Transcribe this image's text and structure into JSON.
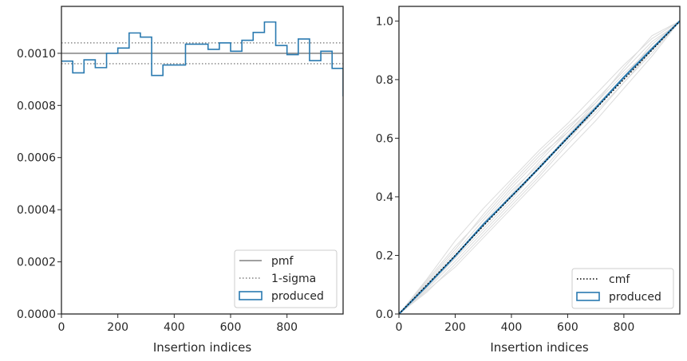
{
  "chart_data": [
    {
      "type": "step",
      "xlabel": "Insertion indices",
      "ylabel": "",
      "xlim": [
        0,
        999
      ],
      "ylim": [
        0,
        0.00118
      ],
      "xticks": [
        0,
        200,
        400,
        600,
        800
      ],
      "xtick_labels": [
        "0",
        "200",
        "400",
        "600",
        "800"
      ],
      "yticks": [
        0,
        0.0002,
        0.0004,
        0.0006,
        0.0008,
        0.001
      ],
      "ytick_labels": [
        "0.0000",
        "0.0002",
        "0.0004",
        "0.0006",
        "0.0008",
        "0.0010"
      ],
      "legend_position": "lower-right",
      "pmf": 0.001,
      "sigma_band": [
        0.00096,
        0.00104
      ],
      "bin_edges": [
        0,
        40,
        80,
        120,
        160,
        200,
        240,
        280,
        320,
        360,
        400,
        440,
        480,
        520,
        560,
        600,
        640,
        680,
        720,
        760,
        800,
        840,
        880,
        920,
        960,
        999
      ],
      "produced": [
        0.00097,
        0.000925,
        0.000975,
        0.000945,
        0.001,
        0.00102,
        0.001078,
        0.001062,
        0.000915,
        0.000955,
        0.000955,
        0.001035,
        0.001035,
        0.001015,
        0.00104,
        0.001008,
        0.00105,
        0.00108,
        0.00112,
        0.00103,
        0.000995,
        0.001055,
        0.000972,
        0.001008,
        0.000942,
        0.000835
      ],
      "legend": [
        {
          "label": "pmf",
          "color": "#808080",
          "style": "solid"
        },
        {
          "label": "1-sigma",
          "color": "#808080",
          "style": "dotted"
        },
        {
          "label": "produced",
          "color": "#2a7ab0",
          "style": "box"
        }
      ],
      "colors": {
        "produced": "#2a7ab0",
        "reference": "#808080"
      }
    },
    {
      "type": "line",
      "xlabel": "Insertion indices",
      "ylabel": "",
      "xlim": [
        0,
        999
      ],
      "ylim": [
        0,
        1.05
      ],
      "xticks": [
        0,
        200,
        400,
        600,
        800
      ],
      "xtick_labels": [
        "0",
        "200",
        "400",
        "600",
        "800"
      ],
      "yticks": [
        0,
        0.2,
        0.4,
        0.6,
        0.8,
        1.0
      ],
      "ytick_labels": [
        "0.0",
        "0.2",
        "0.4",
        "0.6",
        "0.8",
        "1.0"
      ],
      "legend_position": "lower-right",
      "cmf": {
        "x": [
          0,
          999
        ],
        "y": [
          0,
          1.0
        ]
      },
      "produced": {
        "x": [
          0,
          100,
          200,
          300,
          400,
          500,
          600,
          700,
          800,
          900,
          999
        ],
        "y": [
          0,
          0.097,
          0.198,
          0.305,
          0.402,
          0.5,
          0.602,
          0.703,
          0.808,
          0.905,
          1.0
        ]
      },
      "samples": [
        {
          "x": [
            0,
            100,
            200,
            300,
            400,
            500,
            600,
            700,
            800,
            900,
            999
          ],
          "y": [
            0,
            0.12,
            0.25,
            0.36,
            0.46,
            0.56,
            0.65,
            0.75,
            0.85,
            0.94,
            1.0
          ]
        },
        {
          "x": [
            0,
            100,
            200,
            300,
            400,
            500,
            600,
            700,
            800,
            900,
            999
          ],
          "y": [
            0,
            0.08,
            0.16,
            0.26,
            0.36,
            0.46,
            0.56,
            0.66,
            0.77,
            0.88,
            1.0
          ]
        },
        {
          "x": [
            0,
            100,
            200,
            300,
            400,
            500,
            600,
            700,
            800,
            900,
            999
          ],
          "y": [
            0,
            0.11,
            0.22,
            0.34,
            0.45,
            0.55,
            0.64,
            0.72,
            0.82,
            0.91,
            1.0
          ]
        },
        {
          "x": [
            0,
            100,
            200,
            300,
            400,
            500,
            600,
            700,
            800,
            900,
            999
          ],
          "y": [
            0,
            0.085,
            0.18,
            0.28,
            0.38,
            0.48,
            0.59,
            0.7,
            0.81,
            0.92,
            1.0
          ]
        },
        {
          "x": [
            0,
            100,
            200,
            300,
            400,
            500,
            600,
            700,
            800,
            900,
            999
          ],
          "y": [
            0,
            0.105,
            0.21,
            0.32,
            0.43,
            0.53,
            0.63,
            0.73,
            0.83,
            0.93,
            0.995
          ]
        },
        {
          "x": [
            0,
            100,
            200,
            300,
            400,
            500,
            600,
            700,
            800,
            900,
            999
          ],
          "y": [
            0,
            0.09,
            0.19,
            0.29,
            0.39,
            0.5,
            0.61,
            0.71,
            0.8,
            0.9,
            1.0
          ]
        },
        {
          "x": [
            0,
            100,
            200,
            300,
            400,
            500,
            600,
            700,
            800,
            900,
            999
          ],
          "y": [
            0,
            0.1,
            0.2,
            0.31,
            0.42,
            0.51,
            0.6,
            0.69,
            0.79,
            0.89,
            1.0
          ]
        },
        {
          "x": [
            0,
            100,
            200,
            300,
            400,
            500,
            600,
            700,
            800,
            900,
            999
          ],
          "y": [
            0,
            0.115,
            0.23,
            0.33,
            0.44,
            0.54,
            0.62,
            0.72,
            0.84,
            0.95,
            1.0
          ]
        },
        {
          "x": [
            0,
            100,
            200,
            300,
            400,
            500,
            600,
            700,
            800,
            900,
            999
          ],
          "y": [
            0,
            0.075,
            0.17,
            0.27,
            0.37,
            0.47,
            0.58,
            0.68,
            0.79,
            0.9,
            1.0
          ]
        },
        {
          "x": [
            0,
            100,
            200,
            300,
            400,
            500,
            600,
            700,
            800,
            900,
            999
          ],
          "y": [
            0,
            0.095,
            0.2,
            0.3,
            0.41,
            0.52,
            0.62,
            0.71,
            0.81,
            0.92,
            1.0
          ]
        }
      ],
      "legend": [
        {
          "label": "cmf",
          "color": "#000000",
          "style": "dotted"
        },
        {
          "label": "produced",
          "color": "#2a7ab0",
          "style": "box"
        }
      ],
      "colors": {
        "produced": "#2a7ab0",
        "cmf": "#000000",
        "samples": "#dcdcdc"
      }
    }
  ]
}
